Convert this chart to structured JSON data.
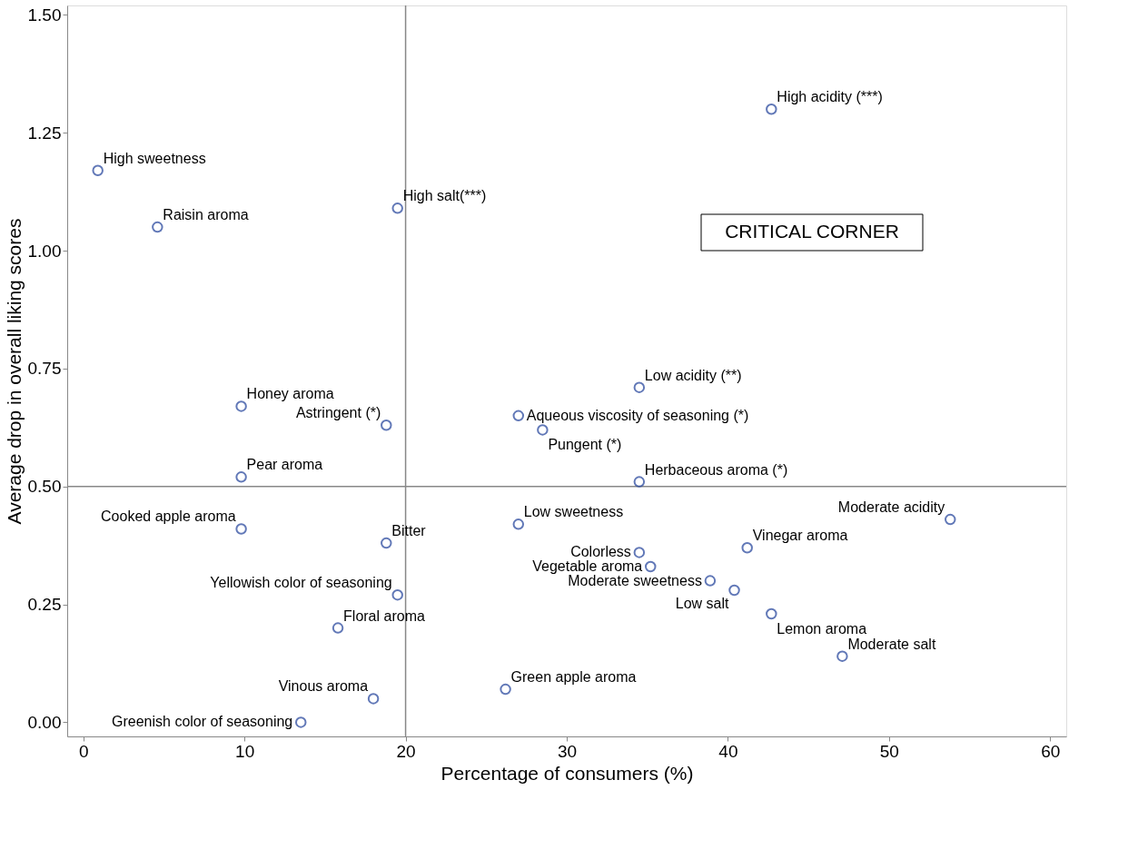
{
  "chart_data": {
    "type": "scatter",
    "xlabel": "Percentage of consumers (%)",
    "ylabel": "Average drop in overall liking scores",
    "x": [
      0.9,
      4.6,
      19.5,
      42.7,
      9.8,
      18.8,
      27.0,
      28.5,
      34.5,
      9.8,
      34.5,
      9.8,
      18.8,
      27.0,
      53.8,
      41.2,
      34.5,
      35.2,
      38.9,
      40.4,
      19.5,
      42.7,
      15.8,
      47.1,
      26.2,
      18.0,
      13.5
    ],
    "series": [
      {
        "color": "#1f3f99",
        "values": [
          1.17,
          1.05,
          1.09,
          1.3,
          0.67,
          0.63,
          0.65,
          0.62,
          0.71,
          0.52,
          0.51,
          0.41,
          0.38,
          0.42,
          0.43,
          0.37,
          0.36,
          0.33,
          0.3,
          0.28,
          0.27,
          0.23,
          0.2,
          0.14,
          0.07,
          0.05,
          0.0
        ]
      }
    ],
    "marker": "circle",
    "xlim": [
      -1,
      61
    ],
    "ylim": [
      -0.03,
      1.52
    ],
    "xticks": [
      0,
      10,
      20,
      30,
      40,
      50,
      60
    ],
    "yticks": [
      {
        "value": 0,
        "label": "0.00"
      },
      {
        "value": 0.25,
        "label": "0.25"
      },
      {
        "value": 0.5,
        "label": "0.50"
      },
      {
        "value": 0.75,
        "label": "0.75"
      },
      {
        "value": 1.0,
        "label": "1.00"
      },
      {
        "value": 1.25,
        "label": "1.25"
      },
      {
        "value": 1.5,
        "label": "1.50"
      }
    ],
    "ref_lines": [
      {
        "axis": "x",
        "value": 20,
        "color": "#888888"
      },
      {
        "axis": "y",
        "value": 0.5,
        "color": "#888888"
      }
    ],
    "grid": false,
    "annotations": [
      {
        "text": "High sweetness",
        "x": 0.9,
        "y": 1.17
      },
      {
        "text": "Raisin aroma",
        "x": 4.6,
        "y": 1.05
      },
      {
        "text": "High salt(***)",
        "x": 19.5,
        "y": 1.09
      },
      {
        "text": "High acidity (***)",
        "x": 42.7,
        "y": 1.3
      },
      {
        "text": "Honey aroma",
        "x": 9.8,
        "y": 0.67
      },
      {
        "text": "Astringent (*)",
        "x": 18.8,
        "y": 0.63
      },
      {
        "text": "Aqueous viscosity of seasoning (*)",
        "x": 27.0,
        "y": 0.65
      },
      {
        "text": "Pungent (*)",
        "x": 28.5,
        "y": 0.62
      },
      {
        "text": "Low acidity (**)",
        "x": 34.5,
        "y": 0.71
      },
      {
        "text": "Pear aroma",
        "x": 9.8,
        "y": 0.52
      },
      {
        "text": "Herbaceous aroma (*)",
        "x": 34.5,
        "y": 0.51
      },
      {
        "text": "Cooked apple aroma",
        "x": 9.8,
        "y": 0.41
      },
      {
        "text": "Bitter",
        "x": 18.8,
        "y": 0.38
      },
      {
        "text": "Low sweetness",
        "x": 27.0,
        "y": 0.42
      },
      {
        "text": "Moderate acidity",
        "x": 53.8,
        "y": 0.43
      },
      {
        "text": "Vinegar aroma",
        "x": 41.2,
        "y": 0.37
      },
      {
        "text": "Colorless",
        "x": 34.5,
        "y": 0.36
      },
      {
        "text": "Vegetable aroma",
        "x": 35.2,
        "y": 0.33
      },
      {
        "text": "Moderate sweetness",
        "x": 38.9,
        "y": 0.3
      },
      {
        "text": "Low salt",
        "x": 40.4,
        "y": 0.28
      },
      {
        "text": "Yellowish color of seasoning",
        "x": 19.5,
        "y": 0.27
      },
      {
        "text": "Lemon aroma",
        "x": 42.7,
        "y": 0.23
      },
      {
        "text": "Floral aroma",
        "x": 15.8,
        "y": 0.2
      },
      {
        "text": "Moderate salt",
        "x": 47.1,
        "y": 0.14
      },
      {
        "text": "Green apple aroma",
        "x": 26.2,
        "y": 0.07
      },
      {
        "text": "Vinous aroma",
        "x": 18.0,
        "y": 0.05
      },
      {
        "text": "Greenish color of seasoning",
        "x": 13.5,
        "y": 0.0
      },
      "CRITICAL CORNER"
    ]
  }
}
